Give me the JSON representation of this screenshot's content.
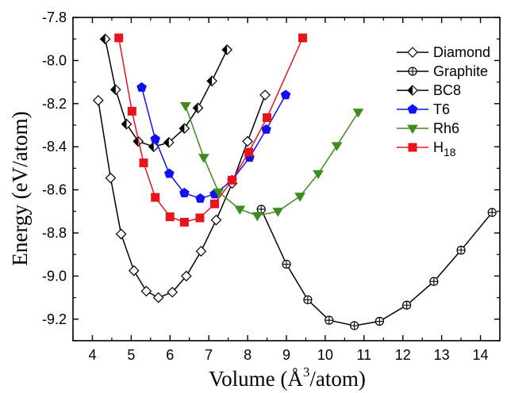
{
  "chart_data": {
    "type": "line",
    "xlabel": "Volume (Å3/atom)",
    "xlabel_parts": {
      "pre": "Volume (",
      "unit": "Å",
      "sup": "3",
      "post": "/atom)"
    },
    "ylabel": "Energy (eV/atom)",
    "xlim": [
      3.5,
      14.5
    ],
    "ylim": [
      -9.3,
      -7.8
    ],
    "x_ticks": [
      4,
      5,
      6,
      7,
      8,
      9,
      10,
      11,
      12,
      13,
      14
    ],
    "y_ticks": [
      -7.8,
      -8.0,
      -8.2,
      -8.4,
      -8.6,
      -8.8,
      -9.0,
      -9.2
    ],
    "x_tick_labels": [
      "4",
      "5",
      "6",
      "7",
      "8",
      "9",
      "10",
      "11",
      "12",
      "13",
      "14"
    ],
    "y_tick_labels": [
      "-7.8",
      "-8.0",
      "-8.2",
      "-8.4",
      "-8.6",
      "-8.8",
      "-9.0",
      "-9.2"
    ],
    "legend_position": "top-right",
    "series": [
      {
        "name": "Diamond",
        "label": "Diamond",
        "color": "#000000",
        "marker": "diamond-open",
        "x": [
          4.15,
          4.47,
          4.74,
          5.07,
          5.39,
          5.7,
          6.06,
          6.42,
          6.8,
          7.19,
          7.6,
          8.0,
          8.45
        ],
        "y": [
          -8.185,
          -8.545,
          -8.805,
          -8.975,
          -9.07,
          -9.1,
          -9.075,
          -9.0,
          -8.885,
          -8.74,
          -8.57,
          -8.375,
          -8.16
        ]
      },
      {
        "name": "Graphite",
        "label": "Graphite",
        "color": "#000000",
        "marker": "circle-plus",
        "x": [
          8.35,
          9.0,
          9.55,
          10.1,
          10.75,
          11.4,
          12.1,
          12.8,
          13.5,
          14.3
        ],
        "y": [
          -8.69,
          -8.945,
          -9.11,
          -9.205,
          -9.23,
          -9.21,
          -9.135,
          -9.025,
          -8.88,
          -8.705
        ]
      },
      {
        "name": "BC8",
        "label": "BC8",
        "color": "#000000",
        "marker": "half-diamond",
        "x": [
          4.33,
          4.6,
          4.88,
          5.18,
          5.58,
          5.97,
          6.37,
          6.72,
          7.08,
          7.47
        ],
        "y": [
          -7.9,
          -8.135,
          -8.295,
          -8.375,
          -8.4,
          -8.38,
          -8.315,
          -8.22,
          -8.095,
          -7.95
        ]
      },
      {
        "name": "T6",
        "label": "T6",
        "color": "#1010f0",
        "marker": "pentagon",
        "x": [
          5.27,
          5.62,
          5.98,
          6.37,
          6.78,
          7.15,
          7.6,
          8.05,
          8.48,
          8.98
        ],
        "y": [
          -8.125,
          -8.365,
          -8.525,
          -8.615,
          -8.64,
          -8.62,
          -8.555,
          -8.45,
          -8.32,
          -8.16
        ]
      },
      {
        "name": "Rh6",
        "label": "Rh6",
        "color": "#3f8c1e",
        "marker": "triangle-down",
        "x": [
          6.4,
          6.87,
          7.25,
          7.8,
          8.25,
          8.78,
          9.35,
          9.82,
          10.3,
          10.85
        ],
        "y": [
          -8.21,
          -8.45,
          -8.61,
          -8.69,
          -8.72,
          -8.7,
          -8.63,
          -8.525,
          -8.395,
          -8.24
        ]
      },
      {
        "name": "H18",
        "label": "H",
        "label_sub": "18",
        "color": "#e8141c",
        "marker": "square",
        "x": [
          4.68,
          5.02,
          5.32,
          5.62,
          6.0,
          6.37,
          6.77,
          7.15,
          7.6,
          8.03,
          8.5,
          9.42
        ],
        "y": [
          -7.895,
          -8.235,
          -8.475,
          -8.635,
          -8.725,
          -8.75,
          -8.73,
          -8.665,
          -8.555,
          -8.425,
          -8.265,
          -7.895
        ]
      }
    ]
  }
}
